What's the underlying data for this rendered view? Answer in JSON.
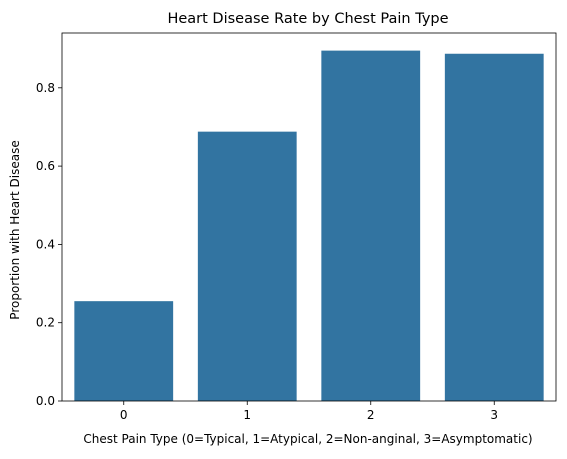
{
  "chart_data": {
    "type": "bar",
    "title": "Heart Disease Rate by Chest Pain Type",
    "xlabel": "Chest Pain Type (0=Typical, 1=Atypical, 2=Non-anginal, 3=Asymptomatic)",
    "ylabel": "Proportion with Heart Disease",
    "categories": [
      "0",
      "1",
      "2",
      "3"
    ],
    "values": [
      0.255,
      0.688,
      0.895,
      0.887
    ],
    "ylim": [
      0,
      0.94
    ],
    "yticks": [
      0.0,
      0.2,
      0.4,
      0.6,
      0.8
    ],
    "ytick_labels": [
      "0.0",
      "0.2",
      "0.4",
      "0.6",
      "0.8"
    ],
    "grid": false,
    "bar_color": "#3274a1"
  }
}
